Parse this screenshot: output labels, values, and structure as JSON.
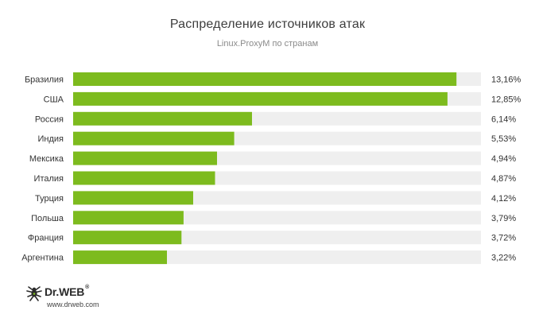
{
  "chart_data": {
    "type": "bar",
    "orientation": "horizontal",
    "title": "Распределение источников атак",
    "subtitle": "Linux.ProxyM по странам",
    "categories": [
      "Бразилия",
      "США",
      "Россия",
      "Индия",
      "Мексика",
      "Италия",
      "Турция",
      "Польша",
      "Франция",
      "Аргентина"
    ],
    "values": [
      13.16,
      12.85,
      6.14,
      5.53,
      4.94,
      4.87,
      4.12,
      3.79,
      3.72,
      3.22
    ],
    "value_labels": [
      "13,16%",
      "12,85%",
      "6,14%",
      "5,53%",
      "4,94%",
      "4,87%",
      "4,12%",
      "3,79%",
      "3,72%",
      "3,22%"
    ],
    "xlim": [
      0,
      14
    ],
    "grid": false,
    "legend": "none",
    "bar_color": "#7dbb1e",
    "track_color": "#efefef"
  },
  "branding": {
    "logo_text": "Dr.WEB",
    "logo_mark": "®",
    "url": "www.drweb.com",
    "logo_color": "#7dbb1e"
  }
}
